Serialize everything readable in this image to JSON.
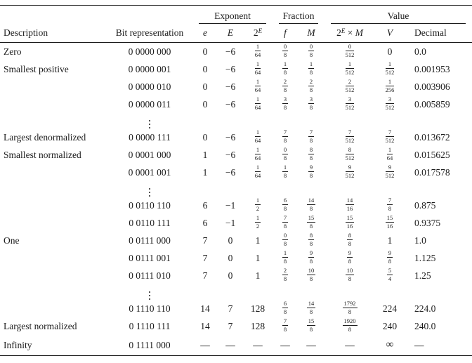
{
  "table": {
    "groups": [
      {
        "label": "",
        "span": 2,
        "ruled": false
      },
      {
        "label": "Exponent",
        "span": 3,
        "ruled": true
      },
      {
        "label": "Fraction",
        "span": 2,
        "ruled": true
      },
      {
        "label": "Value",
        "span": 3,
        "ruled": true
      }
    ],
    "columns": [
      {
        "key": "desc",
        "label": "Description",
        "math": false
      },
      {
        "key": "bits",
        "label": "Bit representation",
        "math": false
      },
      {
        "key": "e",
        "label": "e",
        "math": true
      },
      {
        "key": "E",
        "label": "E",
        "math": true
      },
      {
        "key": "p2E",
        "label": "2^E",
        "math": true
      },
      {
        "key": "f",
        "label": "f",
        "math": true
      },
      {
        "key": "M",
        "label": "M",
        "math": true
      },
      {
        "key": "p2EM",
        "label": "2^E × M",
        "math": true
      },
      {
        "key": "V",
        "label": "V",
        "math": true
      },
      {
        "key": "dec",
        "label": "Decimal",
        "math": false
      }
    ],
    "rows": [
      {
        "desc": "Zero",
        "bits": "0 0000 000",
        "e": "0",
        "E": "−6",
        "p2E": "1/64",
        "f": "0/8",
        "M": "0/8",
        "p2EM": "0/512",
        "V": "0",
        "dec": "0.0"
      },
      {
        "desc": "Smallest positive",
        "bits": "0 0000 001",
        "e": "0",
        "E": "−6",
        "p2E": "1/64",
        "f": "1/8",
        "M": "1/8",
        "p2EM": "1/512",
        "V": "1/512",
        "dec": "0.001953"
      },
      {
        "desc": "",
        "bits": "0 0000 010",
        "e": "0",
        "E": "−6",
        "p2E": "1/64",
        "f": "2/8",
        "M": "2/8",
        "p2EM": "2/512",
        "V": "1/256",
        "dec": "0.003906"
      },
      {
        "desc": "",
        "bits": "0 0000 011",
        "e": "0",
        "E": "−6",
        "p2E": "1/64",
        "f": "3/8",
        "M": "3/8",
        "p2EM": "3/512",
        "V": "3/512",
        "dec": "0.005859"
      },
      {
        "type": "dots",
        "glyph": "⋮"
      },
      {
        "desc": "Largest denormalized",
        "bits": "0 0000 111",
        "e": "0",
        "E": "−6",
        "p2E": "1/64",
        "f": "7/8",
        "M": "7/8",
        "p2EM": "7/512",
        "V": "7/512",
        "dec": "0.013672"
      },
      {
        "desc": "Smallest normalized",
        "bits": "0 0001 000",
        "e": "1",
        "E": "−6",
        "p2E": "1/64",
        "f": "0/8",
        "M": "8/8",
        "p2EM": "8/512",
        "V": "1/64",
        "dec": "0.015625"
      },
      {
        "desc": "",
        "bits": "0 0001 001",
        "e": "1",
        "E": "−6",
        "p2E": "1/64",
        "f": "1/8",
        "M": "9/8",
        "p2EM": "9/512",
        "V": "9/512",
        "dec": "0.017578"
      },
      {
        "type": "dots",
        "glyph": "⋮"
      },
      {
        "desc": "",
        "bits": "0 0110 110",
        "e": "6",
        "E": "−1",
        "p2E": "1/2",
        "f": "6/8",
        "M": "14/8",
        "p2EM": "14/16",
        "V": "7/8",
        "dec": "0.875"
      },
      {
        "desc": "",
        "bits": "0 0110 111",
        "e": "6",
        "E": "−1",
        "p2E": "1/2",
        "f": "7/8",
        "M": "15/8",
        "p2EM": "15/16",
        "V": "15/16",
        "dec": "0.9375"
      },
      {
        "desc": "One",
        "bits": "0 0111 000",
        "e": "7",
        "E": "0",
        "p2E": "1",
        "f": "0/8",
        "M": "8/8",
        "p2EM": "8/8",
        "V": "1",
        "dec": "1.0"
      },
      {
        "desc": "",
        "bits": "0 0111 001",
        "e": "7",
        "E": "0",
        "p2E": "1",
        "f": "1/8",
        "M": "9/8",
        "p2EM": "9/8",
        "V": "9/8",
        "dec": "1.125"
      },
      {
        "desc": "",
        "bits": "0 0111 010",
        "e": "7",
        "E": "0",
        "p2E": "1",
        "f": "2/8",
        "M": "10/8",
        "p2EM": "10/8",
        "V": "5/4",
        "dec": "1.25"
      },
      {
        "type": "dots",
        "glyph": "⋮"
      },
      {
        "desc": "",
        "bits": "0 1110 110",
        "e": "14",
        "E": "7",
        "p2E": "128",
        "f": "6/8",
        "M": "14/8",
        "p2EM": "1792/8",
        "V": "224",
        "dec": "224.0"
      },
      {
        "desc": "Largest normalized",
        "bits": "0 1110 111",
        "e": "14",
        "E": "7",
        "p2E": "128",
        "f": "7/8",
        "M": "15/8",
        "p2EM": "1920/8",
        "V": "240",
        "dec": "240.0"
      },
      {
        "desc": "Infinity",
        "bits": "0 1111 000",
        "e": "—",
        "E": "—",
        "p2E": "—",
        "f": "—",
        "M": "—",
        "p2EM": "—",
        "V": "∞",
        "dec": "—",
        "tall": true
      }
    ]
  }
}
